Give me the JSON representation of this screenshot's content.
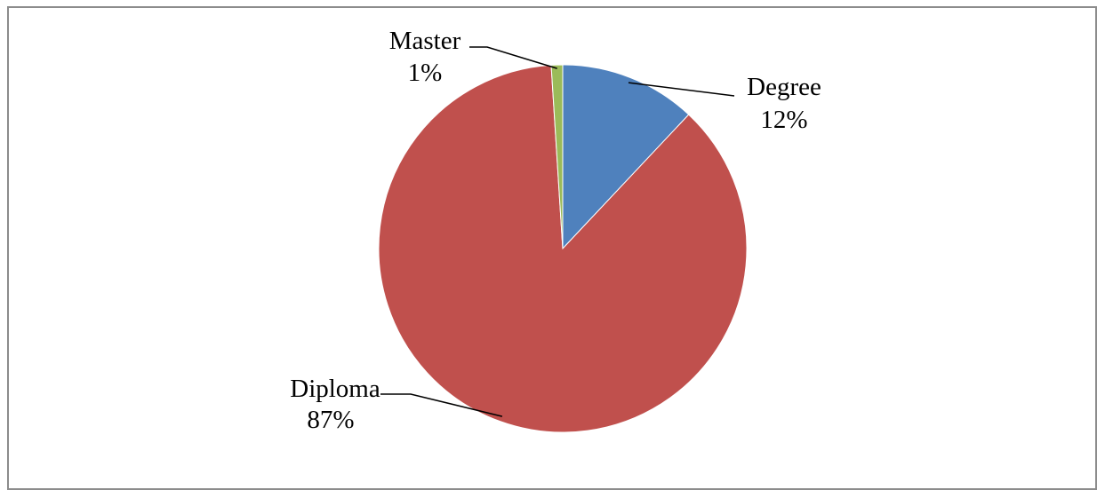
{
  "chart_data": {
    "type": "pie",
    "slices": [
      {
        "label": "Degree",
        "value": 12,
        "value_label": "12%",
        "color": "#4f81bd"
      },
      {
        "label": "Diploma",
        "value": 87,
        "value_label": "87%",
        "color": "#c0504d"
      },
      {
        "label": "Master",
        "value": 1,
        "value_label": "1%",
        "color": "#9bbb59"
      }
    ],
    "start": "top, clockwise",
    "legend": "none",
    "data_labels": "outside with leader lines"
  }
}
